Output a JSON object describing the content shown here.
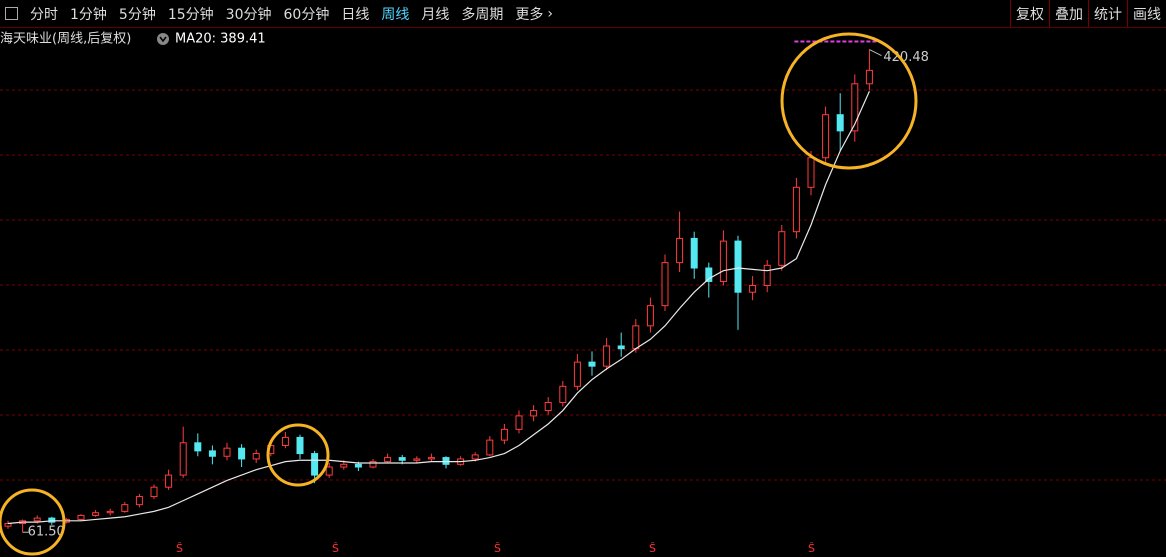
{
  "toolbar": {
    "tabs": [
      "分时",
      "1分钟",
      "5分钟",
      "15分钟",
      "30分钟",
      "60分钟",
      "日线",
      "周线",
      "月线",
      "多周期",
      "更多"
    ],
    "active_tab": 7,
    "buttons": [
      "复权",
      "叠加",
      "统计",
      "画线"
    ]
  },
  "chart_data": {
    "type": "candlestick",
    "title": "海天味业(周线,后复权)",
    "up_color": "#ff3c3c",
    "down_color": "#54e8f0",
    "ylim": [
      52,
      435
    ],
    "ohlc": [
      [
        66,
        70,
        64,
        68
      ],
      [
        68,
        71,
        61.5,
        70
      ],
      [
        70,
        74,
        68,
        72
      ],
      [
        72,
        73,
        67,
        69
      ],
      [
        69,
        72,
        68,
        71
      ],
      [
        71,
        75,
        70,
        74
      ],
      [
        74,
        78,
        73,
        76
      ],
      [
        76,
        79,
        74,
        77
      ],
      [
        77,
        84,
        76,
        82
      ],
      [
        82,
        90,
        80,
        88
      ],
      [
        88,
        97,
        86,
        95
      ],
      [
        95,
        108,
        93,
        104
      ],
      [
        104,
        140,
        102,
        128
      ],
      [
        128,
        135,
        118,
        122
      ],
      [
        122,
        126,
        112,
        118
      ],
      [
        118,
        128,
        115,
        124
      ],
      [
        124,
        127,
        110,
        116
      ],
      [
        116,
        123,
        113,
        120
      ],
      [
        120,
        130,
        118,
        126
      ],
      [
        126,
        136,
        124,
        132
      ],
      [
        132,
        134,
        116,
        120
      ],
      [
        120,
        122,
        98,
        104
      ],
      [
        104,
        113,
        102,
        110
      ],
      [
        110,
        115,
        108,
        112
      ],
      [
        112,
        114,
        107,
        110
      ],
      [
        110,
        116,
        109,
        114
      ],
      [
        114,
        120,
        113,
        117
      ],
      [
        117,
        119,
        112,
        115
      ],
      [
        115,
        118,
        113,
        116
      ],
      [
        116,
        120,
        114,
        117
      ],
      [
        117,
        118,
        109,
        112
      ],
      [
        112,
        118,
        111,
        116
      ],
      [
        116,
        121,
        114,
        119
      ],
      [
        119,
        133,
        118,
        130
      ],
      [
        130,
        142,
        127,
        138
      ],
      [
        138,
        152,
        135,
        148
      ],
      [
        148,
        156,
        144,
        152
      ],
      [
        152,
        162,
        149,
        158
      ],
      [
        158,
        174,
        155,
        170
      ],
      [
        170,
        194,
        167,
        188
      ],
      [
        188,
        196,
        178,
        185
      ],
      [
        185,
        206,
        182,
        200
      ],
      [
        200,
        210,
        192,
        198
      ],
      [
        198,
        220,
        195,
        215
      ],
      [
        215,
        236,
        210,
        230
      ],
      [
        230,
        268,
        226,
        262
      ],
      [
        262,
        300,
        255,
        280
      ],
      [
        280,
        285,
        250,
        258
      ],
      [
        258,
        262,
        236,
        248
      ],
      [
        248,
        286,
        245,
        278
      ],
      [
        278,
        282,
        212,
        240
      ],
      [
        240,
        252,
        234,
        245
      ],
      [
        245,
        264,
        240,
        260
      ],
      [
        260,
        290,
        256,
        285
      ],
      [
        285,
        325,
        280,
        318
      ],
      [
        318,
        345,
        312,
        340
      ],
      [
        340,
        378,
        335,
        372
      ],
      [
        372,
        388,
        345,
        360
      ],
      [
        360,
        402,
        352,
        395
      ],
      [
        395,
        420.48,
        390,
        405
      ]
    ],
    "ma": {
      "label": "MA20: 389.41",
      "color": "#e8e8e8",
      "values": [
        68,
        69,
        69,
        70,
        70,
        70,
        71,
        72,
        73,
        75,
        77,
        80,
        85,
        90,
        95,
        100,
        104,
        108,
        111,
        114,
        115,
        115,
        115,
        114,
        113,
        113,
        113,
        113,
        113,
        114,
        114,
        114,
        115,
        117,
        120,
        126,
        134,
        142,
        152,
        165,
        175,
        183,
        190,
        198,
        205,
        215,
        228,
        240,
        250,
        256,
        258,
        257,
        256,
        258,
        265,
        290,
        320,
        345,
        365,
        389.41
      ]
    },
    "extremes": [
      {
        "value": 61.5,
        "label": "61.50",
        "index": 1
      },
      {
        "value": 420.48,
        "label": "420.48",
        "index": 59
      }
    ]
  }
}
